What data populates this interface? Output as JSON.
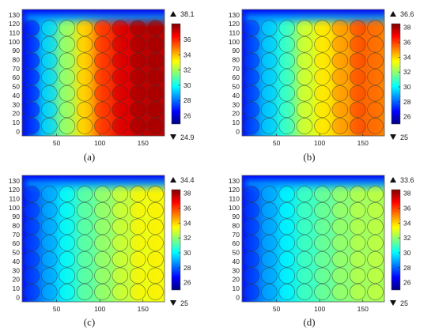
{
  "chart_data": [
    {
      "type": "heatmap",
      "caption": "(a)",
      "colorbar_max_label": "38.1",
      "colorbar_min_label": "24.9",
      "colorbar_ticks": [
        26,
        28,
        30,
        32,
        34,
        36
      ],
      "colorbar_range": [
        24.9,
        38.1
      ],
      "profile": [
        26.5,
        29,
        31.5,
        33.5,
        35.5,
        36.7,
        37.3,
        37.3
      ]
    },
    {
      "type": "heatmap",
      "caption": "(b)",
      "colorbar_max_label": "36.6",
      "colorbar_min_label": "25",
      "colorbar_ticks": [
        26,
        28,
        30,
        32,
        34,
        36,
        38
      ],
      "colorbar_range": [
        25,
        38.5
      ],
      "profile": [
        27,
        29,
        30.5,
        32.5,
        33.5,
        34.5,
        35.5,
        35
      ]
    },
    {
      "type": "heatmap",
      "caption": "(c)",
      "colorbar_max_label": "34.4",
      "colorbar_min_label": "25",
      "colorbar_ticks": [
        26,
        28,
        30,
        32,
        34,
        36,
        38
      ],
      "colorbar_range": [
        25,
        38.5
      ],
      "profile": [
        27,
        28.5,
        29.8,
        31,
        31.8,
        32.5,
        33.2,
        33.3
      ]
    },
    {
      "type": "heatmap",
      "caption": "(d)",
      "colorbar_max_label": "33.6",
      "colorbar_min_label": "25",
      "colorbar_ticks": [
        26,
        28,
        30,
        32,
        34,
        36,
        38
      ],
      "colorbar_range": [
        25,
        38.5
      ],
      "profile": [
        27,
        28.5,
        29.6,
        30.6,
        31.2,
        31.8,
        32.2,
        32.3
      ]
    }
  ],
  "axes": {
    "xticks": [
      50,
      100,
      150
    ],
    "xlim": [
      10,
      175
    ],
    "yticks": [
      0,
      10,
      20,
      30,
      40,
      50,
      60,
      70,
      80,
      90,
      100,
      110,
      120,
      130
    ],
    "ylim": [
      -5,
      136
    ]
  },
  "colors": {
    "jet": [
      "#00007f",
      "#0000ff",
      "#007fff",
      "#00ffff",
      "#7fff7f",
      "#ffff00",
      "#ff7f00",
      "#ff0000",
      "#7f0000"
    ],
    "circle_stroke": "#333333",
    "text": "#222222"
  }
}
